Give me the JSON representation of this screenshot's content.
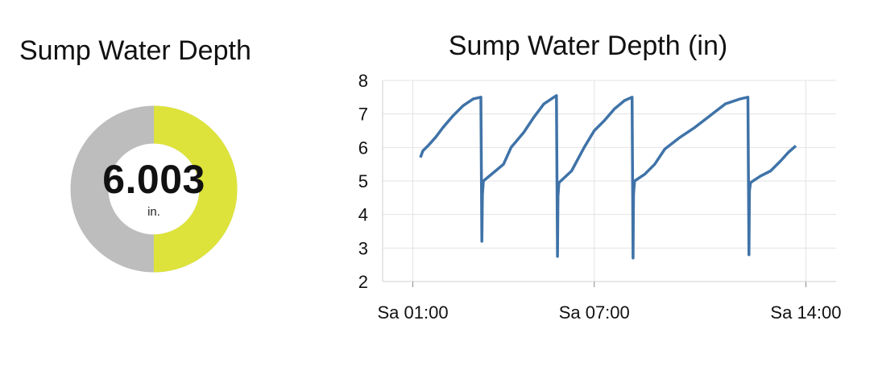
{
  "gauge": {
    "title": "Sump Water Depth",
    "value": "6.003",
    "unit": "in.",
    "fill_fraction": 0.5,
    "fill_color": "#dde33a",
    "track_color": "#bdbdbd"
  },
  "chart_data": {
    "type": "line",
    "title": "Sump Water Depth (in)",
    "xlabel": "",
    "ylabel": "",
    "ylim": [
      2,
      8
    ],
    "yticks": [
      2,
      3,
      4,
      5,
      6,
      7,
      8
    ],
    "xlim": [
      "00:00",
      "15:00"
    ],
    "xticks": [
      {
        "time": "01:00",
        "label": "Sa 01:00"
      },
      {
        "time": "07:00",
        "label": "Sa 07:00"
      },
      {
        "time": "14:00",
        "label": "Sa 14:00"
      }
    ],
    "grid": true,
    "series": [
      {
        "color": "#3f73a8",
        "points": [
          [
            "01:15",
            5.7
          ],
          [
            "01:20",
            5.9
          ],
          [
            "01:30",
            6.05
          ],
          [
            "01:45",
            6.3
          ],
          [
            "02:00",
            6.6
          ],
          [
            "02:20",
            6.95
          ],
          [
            "02:40",
            7.25
          ],
          [
            "03:00",
            7.45
          ],
          [
            "03:15",
            7.5
          ],
          [
            "03:17",
            3.2
          ],
          [
            "03:18",
            4.6
          ],
          [
            "03:20",
            5.0
          ],
          [
            "03:40",
            5.25
          ],
          [
            "04:00",
            5.5
          ],
          [
            "04:15",
            6.0
          ],
          [
            "04:40",
            6.45
          ],
          [
            "05:00",
            6.9
          ],
          [
            "05:20",
            7.3
          ],
          [
            "05:40",
            7.5
          ],
          [
            "05:45",
            7.55
          ],
          [
            "05:47",
            2.75
          ],
          [
            "05:48",
            4.55
          ],
          [
            "05:50",
            4.95
          ],
          [
            "06:15",
            5.3
          ],
          [
            "06:40",
            6.0
          ],
          [
            "07:00",
            6.5
          ],
          [
            "07:20",
            6.8
          ],
          [
            "07:40",
            7.15
          ],
          [
            "08:00",
            7.4
          ],
          [
            "08:15",
            7.5
          ],
          [
            "08:17",
            2.7
          ],
          [
            "08:18",
            4.6
          ],
          [
            "08:20",
            5.0
          ],
          [
            "08:40",
            5.2
          ],
          [
            "09:00",
            5.5
          ],
          [
            "09:20",
            5.95
          ],
          [
            "09:50",
            6.3
          ],
          [
            "10:20",
            6.6
          ],
          [
            "10:50",
            6.95
          ],
          [
            "11:20",
            7.3
          ],
          [
            "11:50",
            7.45
          ],
          [
            "12:05",
            7.5
          ],
          [
            "12:07",
            2.8
          ],
          [
            "12:08",
            4.7
          ],
          [
            "12:10",
            4.95
          ],
          [
            "12:30",
            5.15
          ],
          [
            "12:50",
            5.3
          ],
          [
            "13:10",
            5.6
          ],
          [
            "13:25",
            5.85
          ],
          [
            "13:40",
            6.05
          ]
        ]
      }
    ]
  }
}
